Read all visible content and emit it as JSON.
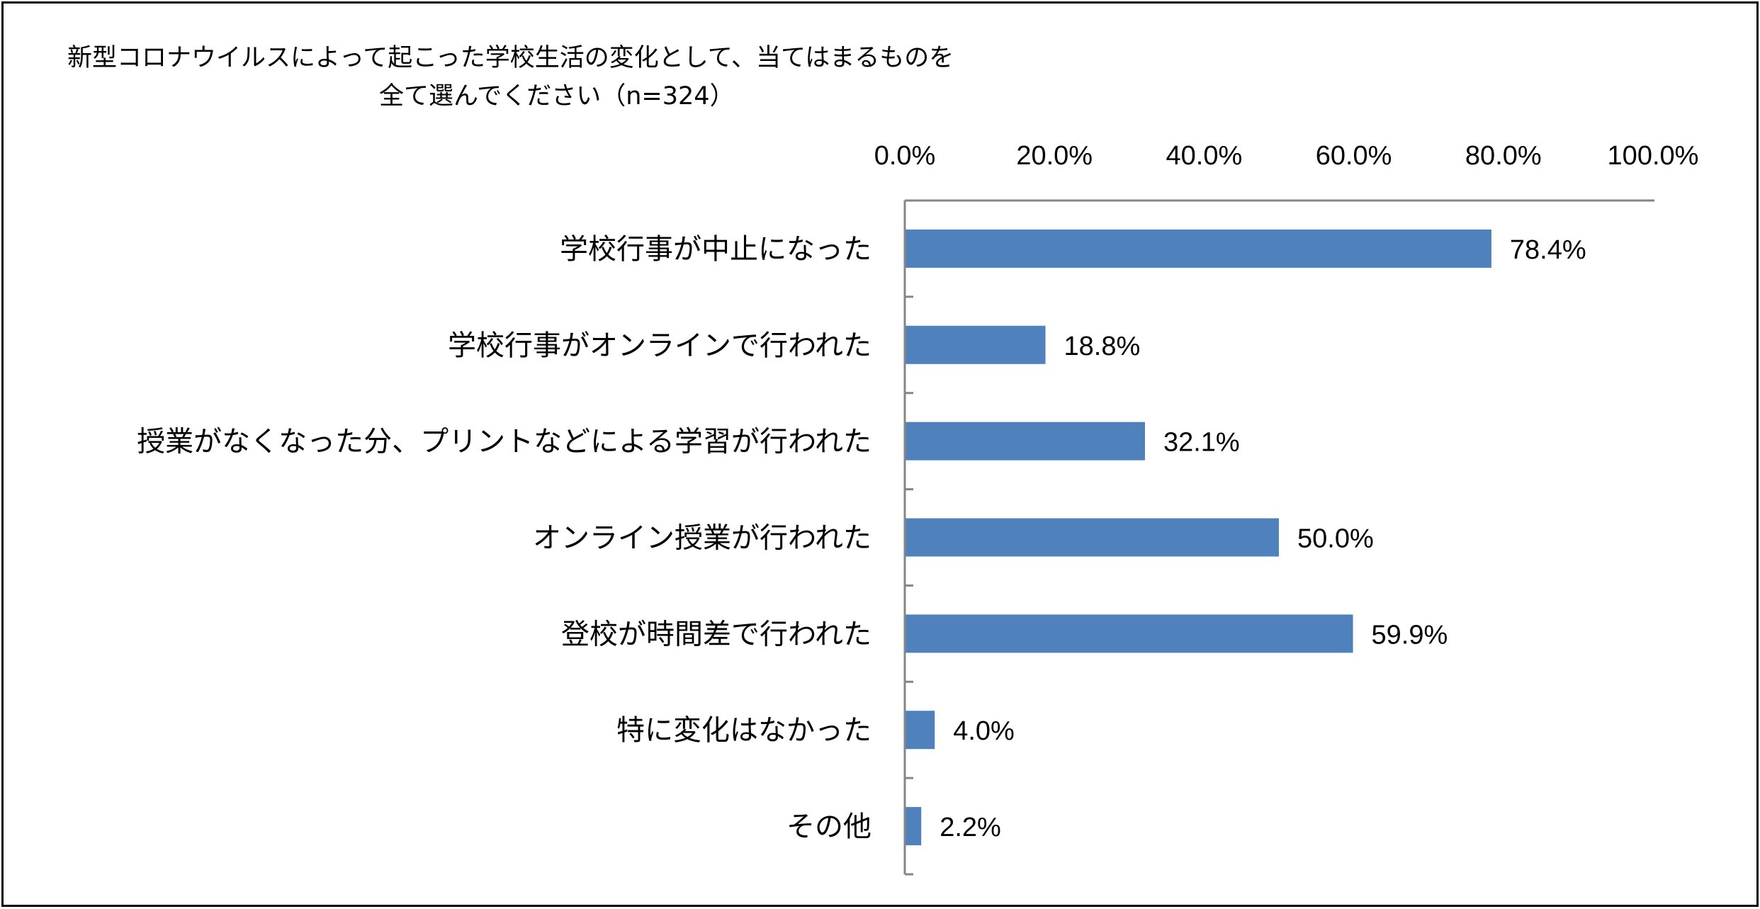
{
  "chart_data": {
    "type": "bar",
    "orientation": "horizontal",
    "title_line1": "新型コロナウイルスによって起こった学校生活の変化として、当てはまるものを",
    "title_line2": "全て選んでください（n=324）",
    "xaxis_position": "top",
    "xlim": [
      0,
      100
    ],
    "x_ticks": [
      0,
      20,
      40,
      60,
      80,
      100
    ],
    "x_tick_labels": [
      "0.0%",
      "20.0%",
      "40.0%",
      "60.0%",
      "80.0%",
      "100.0%"
    ],
    "categories": [
      "学校行事が中止になった",
      "学校行事がオンラインで行われた",
      "授業がなくなった分、プリントなどによる学習が行われた",
      "オンライン授業が行われた",
      "登校が時間差で行われた",
      "特に変化はなかった",
      "その他"
    ],
    "values": [
      78.4,
      18.8,
      32.1,
      50.0,
      59.9,
      4.0,
      2.2
    ],
    "value_labels": [
      "78.4%",
      "18.8%",
      "32.1%",
      "50.0%",
      "59.9%",
      "4.0%",
      "2.2%"
    ],
    "bar_color": "#4f81bd",
    "axis_color": "#868686",
    "grid": false,
    "legend": "none"
  }
}
